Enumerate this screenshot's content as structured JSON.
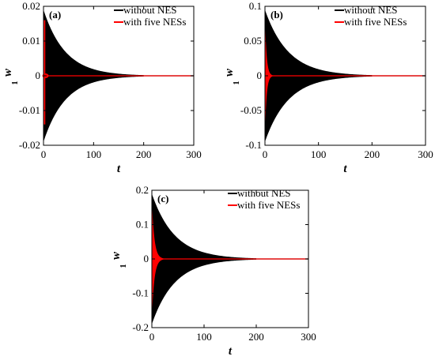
{
  "figure": {
    "panels": [
      {
        "label": "(a)"
      },
      {
        "label": "(b)"
      },
      {
        "label": "(c)"
      }
    ]
  },
  "chart_data": [
    {
      "type": "line",
      "panel_label": "(a)",
      "xlabel": "t",
      "ylabel": "w",
      "ylabel_subscript": "1",
      "xlim": [
        0,
        300
      ],
      "ylim": [
        -0.02,
        0.02
      ],
      "xticks": [
        0,
        100,
        200,
        300
      ],
      "yticks": [
        -0.02,
        -0.01,
        0,
        0.01,
        0.02
      ],
      "ytick_labels": [
        "-0.02",
        "-0.01",
        "0",
        "0.01",
        "0.02"
      ],
      "grid": false,
      "legend_position": "top-right",
      "series": [
        {
          "name": "without NES",
          "color": "#000000",
          "amplitude": 0.019,
          "decay_to_zero_t": 200
        },
        {
          "name": "with five NESs",
          "color": "#ff0000",
          "amplitude": 0.0,
          "decay_to_zero_t": 8
        }
      ]
    },
    {
      "type": "line",
      "panel_label": "(b)",
      "xlabel": "t",
      "ylabel": "w",
      "ylabel_subscript": "1",
      "xlim": [
        0,
        300
      ],
      "ylim": [
        -0.1,
        0.1
      ],
      "xticks": [
        0,
        100,
        200,
        300
      ],
      "yticks": [
        -0.1,
        -0.05,
        0,
        0.05,
        0.1
      ],
      "ytick_labels": [
        "-0.1",
        "-0.05",
        "0",
        "0.05",
        "0.1"
      ],
      "grid": false,
      "legend_position": "top-right",
      "series": [
        {
          "name": "without NES",
          "color": "#000000",
          "amplitude": 0.095,
          "decay_to_zero_t": 200
        },
        {
          "name": "with five NESs",
          "color": "#ff0000",
          "amplitude": 0.085,
          "decay_to_zero_t": 14
        }
      ]
    },
    {
      "type": "line",
      "panel_label": "(c)",
      "xlabel": "t",
      "ylabel": "w",
      "ylabel_subscript": "1",
      "xlim": [
        0,
        300
      ],
      "ylim": [
        -0.2,
        0.2
      ],
      "xticks": [
        0,
        100,
        200,
        300
      ],
      "yticks": [
        -0.2,
        -0.1,
        0,
        0.1,
        0.2
      ],
      "ytick_labels": [
        "-0.2",
        "-0.1",
        "0",
        "0.1",
        "0.2"
      ],
      "grid": false,
      "legend_position": "top-right",
      "series": [
        {
          "name": "without NES",
          "color": "#000000",
          "amplitude": 0.19,
          "decay_to_zero_t": 200
        },
        {
          "name": "with five NESs",
          "color": "#ff0000",
          "amplitude": 0.17,
          "decay_to_zero_t": 22
        }
      ]
    }
  ]
}
